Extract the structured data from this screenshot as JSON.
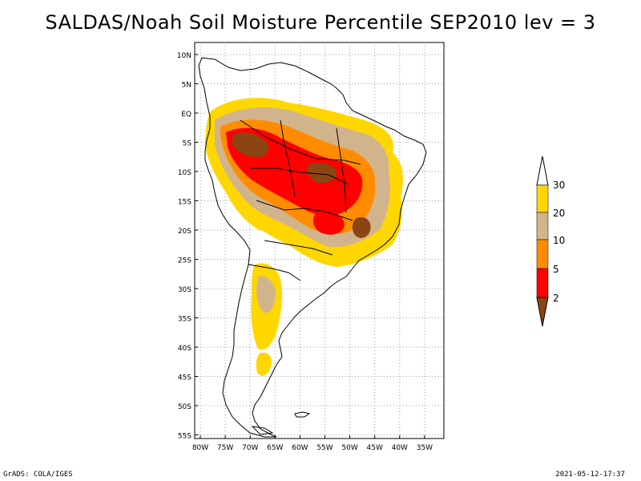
{
  "title": "SALDAS/Noah Soil Moisture Percentile SEP2010 lev = 3",
  "map": {
    "lat_labels": [
      "10N",
      "5N",
      "EQ",
      "5S",
      "10S",
      "15S",
      "20S",
      "25S",
      "30S",
      "35S",
      "40S",
      "45S",
      "50S",
      "55S"
    ],
    "lon_labels": [
      "80W",
      "75W",
      "70W",
      "65W",
      "60W",
      "55W",
      "50W",
      "45W",
      "40W",
      "35W"
    ],
    "grid": "dotted",
    "extent": {
      "lon": [
        -81,
        -34
      ],
      "lat": [
        -56,
        12
      ]
    }
  },
  "legend": {
    "levels": [
      "2",
      "5",
      "10",
      "20",
      "30"
    ],
    "colors": {
      "below_2": "#8b4513",
      "2_5": "#ff0000",
      "5_10": "#ff8c00",
      "10_20": "#d2b48c",
      "20_30": "#ffd700",
      "above_30": "#ffffff"
    }
  },
  "footer": {
    "left": "GrADS: COLA/IGES",
    "right": "2021-05-12-17:37"
  }
}
